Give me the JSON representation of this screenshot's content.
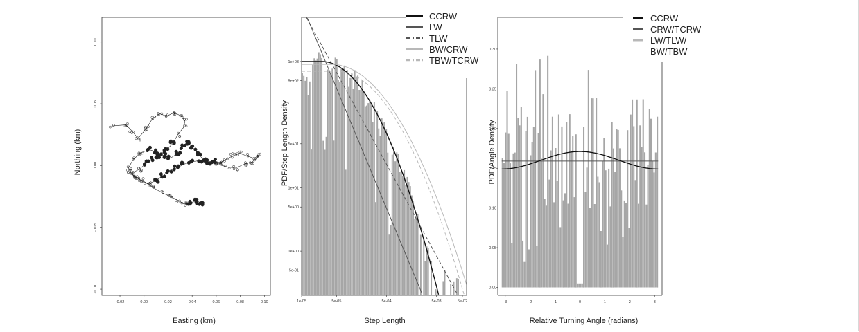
{
  "chart_data": [
    {
      "type": "scatter",
      "title": "",
      "xlabel": "Easting (km)",
      "ylabel": "Northing (km)",
      "xlim": [
        -0.035,
        0.105
      ],
      "ylim": [
        -0.105,
        0.12
      ],
      "x_ticks": [
        "-0.02",
        "0.00",
        "0.02",
        "0.04",
        "0.06",
        "0.08",
        "0.10"
      ],
      "x_tick_values": [
        -0.02,
        0.0,
        0.02,
        0.04,
        0.06,
        0.08,
        0.1
      ],
      "y_ticks": [
        "-0.10",
        "-0.05",
        "0.00",
        "0.05",
        "0.10"
      ],
      "y_tick_values": [
        -0.1,
        -0.05,
        0.0,
        0.05,
        0.1
      ],
      "track": [
        [
          -0.027,
          0.032
        ],
        [
          -0.015,
          0.033
        ],
        [
          -0.01,
          0.028
        ],
        [
          -0.005,
          0.022
        ],
        [
          0.002,
          0.03
        ],
        [
          0.007,
          0.038
        ],
        [
          0.013,
          0.042
        ],
        [
          0.019,
          0.04
        ],
        [
          0.025,
          0.043
        ],
        [
          0.031,
          0.04
        ],
        [
          0.034,
          0.036
        ],
        [
          0.033,
          0.031
        ],
        [
          0.028,
          0.025
        ],
        [
          0.024,
          0.018
        ],
        [
          0.018,
          0.012
        ],
        [
          0.012,
          0.008
        ],
        [
          0.006,
          0.005
        ],
        [
          0.002,
          0.002
        ],
        [
          -0.004,
          -0.003
        ],
        [
          -0.01,
          -0.006
        ],
        [
          -0.013,
          -0.002
        ],
        [
          -0.009,
          0.005
        ],
        [
          -0.003,
          0.01
        ],
        [
          0.004,
          0.013
        ],
        [
          0.01,
          0.011
        ],
        [
          0.016,
          0.008
        ],
        [
          0.022,
          0.006
        ],
        [
          0.028,
          0.01
        ],
        [
          0.032,
          0.015
        ],
        [
          0.037,
          0.018
        ],
        [
          0.041,
          0.014
        ],
        [
          0.045,
          0.01
        ],
        [
          0.049,
          0.005
        ],
        [
          0.053,
          0.003
        ],
        [
          0.058,
          0.004
        ],
        [
          0.063,
          0.002
        ],
        [
          0.068,
          0.005
        ],
        [
          0.074,
          0.008
        ],
        [
          0.079,
          0.01
        ],
        [
          0.085,
          0.008
        ],
        [
          0.091,
          0.006
        ],
        [
          0.096,
          0.008
        ],
        [
          0.09,
          0.003
        ],
        [
          0.083,
          0.001
        ],
        [
          0.076,
          -0.002
        ],
        [
          0.069,
          -0.001
        ],
        [
          0.061,
          0.001
        ],
        [
          0.054,
          0.003
        ],
        [
          0.046,
          0.004
        ],
        [
          0.039,
          0.003
        ],
        [
          0.033,
          0.001
        ],
        [
          0.027,
          -0.002
        ],
        [
          0.021,
          -0.004
        ],
        [
          0.016,
          -0.008
        ],
        [
          0.01,
          -0.012
        ],
        [
          0.004,
          -0.015
        ],
        [
          -0.002,
          -0.012
        ],
        [
          -0.008,
          -0.009
        ],
        [
          -0.012,
          -0.005
        ],
        [
          -0.006,
          -0.01
        ],
        [
          0.0,
          -0.013
        ],
        [
          0.008,
          -0.018
        ],
        [
          0.015,
          -0.022
        ],
        [
          0.022,
          -0.025
        ],
        [
          0.028,
          -0.028
        ],
        [
          0.033,
          -0.031
        ],
        [
          0.038,
          -0.03
        ],
        [
          0.043,
          -0.029
        ],
        [
          0.048,
          -0.03
        ]
      ]
    },
    {
      "type": "bar",
      "title": "",
      "xlabel": "Step Length",
      "ylabel": "PDF/Step Length Density",
      "x_scale": "log",
      "y_scale": "log",
      "xlim": [
        1e-05,
        0.02
      ],
      "ylim": [
        0.2,
        5000
      ],
      "x_ticks": [
        "1e-05",
        "5e-05",
        "5e-04",
        "5e-03",
        "5e-02"
      ],
      "x_tick_values": [
        1e-05,
        5e-05,
        0.0005,
        0.005,
        0.05
      ],
      "y_ticks": [
        "1e+03",
        "5e+02",
        "5e+01",
        "1e+01",
        "5e+00",
        "1e+00",
        "5e-01"
      ],
      "y_tick_values": [
        1000,
        500,
        50,
        10,
        5,
        1,
        0.5
      ],
      "series": [
        {
          "name": "CCRW",
          "color": "#111111",
          "dash": "solid",
          "width": 1.4
        },
        {
          "name": "LW",
          "color": "#555555",
          "dash": "solid",
          "width": 1.0
        },
        {
          "name": "TLW",
          "color": "#555555",
          "dash": "dashed",
          "width": 1.0
        },
        {
          "name": "BW/CRW",
          "color": "#b8b8b8",
          "dash": "solid",
          "width": 1.0
        },
        {
          "name": "TBW/TCRW",
          "color": "#b8b8b8",
          "dash": "dashed",
          "width": 1.0
        }
      ],
      "histogram_color": "#a6a6a6",
      "legend_position": "top-right"
    },
    {
      "type": "bar",
      "title": "",
      "xlabel": "Relative Turning Angle (radians)",
      "ylabel": "PDF/Angle Density",
      "xlim": [
        -3.3,
        3.3
      ],
      "ylim": [
        -0.01,
        0.34
      ],
      "x_ticks": [
        "-3",
        "-2",
        "-1",
        "0",
        "1",
        "2",
        "3"
      ],
      "x_tick_values": [
        -3,
        -2,
        -1,
        0,
        1,
        2,
        3
      ],
      "y_ticks": [
        "0.00",
        "0.05",
        "0.10",
        "0.15",
        "0.20",
        "0.25",
        "0.30"
      ],
      "y_tick_values": [
        0.0,
        0.05,
        0.1,
        0.15,
        0.2,
        0.25,
        0.3
      ],
      "uniform_density": 0.159,
      "wrapped_peak": 0.171,
      "wrapped_base": 0.149,
      "series": [
        {
          "name": "CCRW",
          "color": "#111111"
        },
        {
          "name": "CRW/TCRW",
          "color": "#555555"
        },
        {
          "name": "LW/TLW/ BW/TBW",
          "color": "#b8b8b8"
        }
      ],
      "histogram_color": "#a6a6a6",
      "legend_position": "top-right"
    }
  ]
}
